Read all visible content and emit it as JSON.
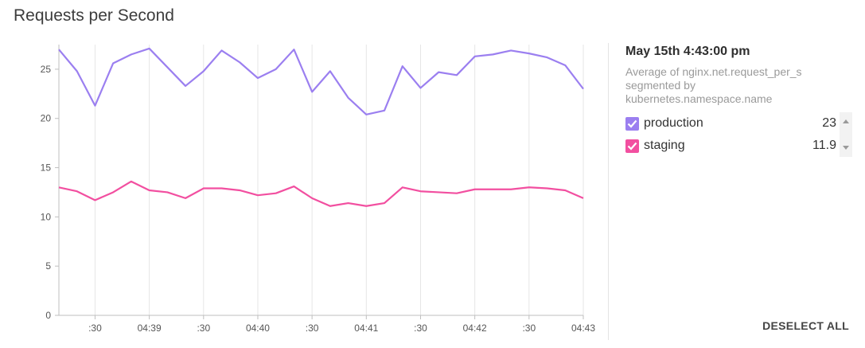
{
  "title": "Requests per Second",
  "panel": {
    "timestamp": "May 15th 4:43:00 pm",
    "description": "Average of nginx.net.request_per_s segmented by kubernetes.namespace.name",
    "deselect_label": "DESELECT ALL"
  },
  "legend": [
    {
      "name": "production",
      "value": "23",
      "color": "#9b7ff0",
      "checked": true
    },
    {
      "name": "staging",
      "value": "11.9",
      "color": "#f24fa0",
      "checked": true
    }
  ],
  "chart_data": {
    "type": "line",
    "ylim": [
      0,
      27.5
    ],
    "yticks": [
      0,
      5,
      10,
      15,
      20,
      25
    ],
    "xlim": [
      0,
      29
    ],
    "xtick_positions": [
      2,
      5,
      8,
      11,
      14,
      17,
      20,
      23,
      26,
      29
    ],
    "xtick_labels": [
      ":30",
      "04:39",
      ":30",
      "04:40",
      ":30",
      "04:41",
      ":30",
      "04:42",
      ":30",
      "04:43"
    ],
    "grid": true,
    "series": [
      {
        "name": "production",
        "color": "#9b7ff0",
        "values": [
          27.0,
          24.8,
          21.3,
          25.6,
          26.5,
          27.1,
          25.2,
          23.3,
          24.8,
          26.9,
          25.7,
          24.1,
          25.0,
          27.0,
          22.7,
          24.8,
          22.1,
          20.4,
          20.8,
          25.3,
          23.1,
          24.7,
          24.4,
          26.3,
          26.5,
          26.9,
          26.6,
          26.2,
          25.4,
          23.0
        ]
      },
      {
        "name": "staging",
        "color": "#f24fa0",
        "values": [
          13.0,
          12.6,
          11.7,
          12.5,
          13.6,
          12.7,
          12.5,
          11.9,
          12.9,
          12.9,
          12.7,
          12.2,
          12.4,
          13.1,
          11.9,
          11.1,
          11.4,
          11.1,
          11.4,
          13.0,
          12.6,
          12.5,
          12.4,
          12.8,
          12.8,
          12.8,
          13.0,
          12.9,
          12.7,
          11.9
        ]
      }
    ]
  }
}
